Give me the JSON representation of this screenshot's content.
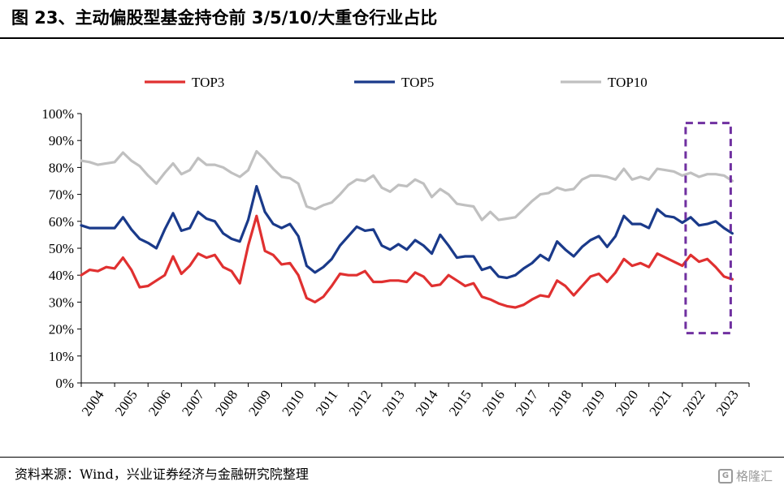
{
  "title": "图 23、主动偏股型基金持仓前 3/5/10/大重仓行业占比",
  "source": "资料来源：Wind，兴业证券经济与金融研究院整理",
  "watermark": "格隆汇",
  "chart_data": {
    "type": "line",
    "ylim": [
      0,
      100
    ],
    "y_ticks": [
      "0%",
      "10%",
      "20%",
      "30%",
      "40%",
      "50%",
      "60%",
      "70%",
      "80%",
      "90%",
      "100%"
    ],
    "x_ticks": [
      "2004",
      "2005",
      "2006",
      "2007",
      "2008",
      "2009",
      "2010",
      "2011",
      "2012",
      "2013",
      "2014",
      "2015",
      "2016",
      "2017",
      "2018",
      "2019",
      "2020",
      "2021",
      "2022",
      "2023"
    ],
    "x_range": [
      2004.0,
      2024.0
    ],
    "legend_position": "top",
    "highlight": {
      "x_range": [
        2022.1,
        2023.45
      ],
      "y_range": [
        18.5,
        96.5
      ],
      "color": "#7030a0"
    },
    "series": [
      {
        "name": "TOP3",
        "color": "#e03030",
        "values": [
          [
            2004.0,
            40
          ],
          [
            2004.25,
            42
          ],
          [
            2004.5,
            41.5
          ],
          [
            2004.75,
            43
          ],
          [
            2005.0,
            42.5
          ],
          [
            2005.25,
            46.5
          ],
          [
            2005.5,
            42
          ],
          [
            2005.75,
            35.5
          ],
          [
            2006.0,
            36
          ],
          [
            2006.25,
            38
          ],
          [
            2006.5,
            40
          ],
          [
            2006.75,
            47
          ],
          [
            2007.0,
            40.5
          ],
          [
            2007.25,
            43.5
          ],
          [
            2007.5,
            48
          ],
          [
            2007.75,
            46.5
          ],
          [
            2008.0,
            47.5
          ],
          [
            2008.25,
            43
          ],
          [
            2008.5,
            41.5
          ],
          [
            2008.75,
            37
          ],
          [
            2009.0,
            51
          ],
          [
            2009.25,
            62
          ],
          [
            2009.5,
            49
          ],
          [
            2009.75,
            47.5
          ],
          [
            2010.0,
            44
          ],
          [
            2010.25,
            44.5
          ],
          [
            2010.5,
            40
          ],
          [
            2010.75,
            31.5
          ],
          [
            2011.0,
            30
          ],
          [
            2011.25,
            32
          ],
          [
            2011.5,
            36
          ],
          [
            2011.75,
            40.5
          ],
          [
            2012.0,
            40
          ],
          [
            2012.25,
            40
          ],
          [
            2012.5,
            41.5
          ],
          [
            2012.75,
            37.5
          ],
          [
            2013.0,
            37.5
          ],
          [
            2013.25,
            38
          ],
          [
            2013.5,
            38
          ],
          [
            2013.75,
            37.5
          ],
          [
            2014.0,
            41
          ],
          [
            2014.25,
            39.5
          ],
          [
            2014.5,
            36
          ],
          [
            2014.75,
            36.5
          ],
          [
            2015.0,
            40
          ],
          [
            2015.25,
            38
          ],
          [
            2015.5,
            36
          ],
          [
            2015.75,
            37
          ],
          [
            2016.0,
            32
          ],
          [
            2016.25,
            31
          ],
          [
            2016.5,
            29.5
          ],
          [
            2016.75,
            28.5
          ],
          [
            2017.0,
            28
          ],
          [
            2017.25,
            29
          ],
          [
            2017.5,
            31
          ],
          [
            2017.75,
            32.5
          ],
          [
            2018.0,
            32
          ],
          [
            2018.25,
            38
          ],
          [
            2018.5,
            36
          ],
          [
            2018.75,
            32.5
          ],
          [
            2019.0,
            36
          ],
          [
            2019.25,
            39.5
          ],
          [
            2019.5,
            40.5
          ],
          [
            2019.75,
            37.5
          ],
          [
            2020.0,
            41
          ],
          [
            2020.25,
            46
          ],
          [
            2020.5,
            43.5
          ],
          [
            2020.75,
            44.5
          ],
          [
            2021.0,
            43
          ],
          [
            2021.25,
            48
          ],
          [
            2021.5,
            46.5
          ],
          [
            2021.75,
            45
          ],
          [
            2022.0,
            43.5
          ],
          [
            2022.25,
            47.5
          ],
          [
            2022.5,
            45
          ],
          [
            2022.75,
            46
          ],
          [
            2023.0,
            43
          ],
          [
            2023.25,
            39.5
          ],
          [
            2023.5,
            38.5
          ]
        ]
      },
      {
        "name": "TOP5",
        "color": "#1a3a8a",
        "values": [
          [
            2004.0,
            58.5
          ],
          [
            2004.25,
            57.5
          ],
          [
            2004.5,
            57.5
          ],
          [
            2004.75,
            57.5
          ],
          [
            2005.0,
            57.5
          ],
          [
            2005.25,
            61.5
          ],
          [
            2005.5,
            57
          ],
          [
            2005.75,
            53.5
          ],
          [
            2006.0,
            52
          ],
          [
            2006.25,
            50
          ],
          [
            2006.5,
            57
          ],
          [
            2006.75,
            63
          ],
          [
            2007.0,
            56.5
          ],
          [
            2007.25,
            57.5
          ],
          [
            2007.5,
            63.5
          ],
          [
            2007.75,
            61
          ],
          [
            2008.0,
            60
          ],
          [
            2008.25,
            55.5
          ],
          [
            2008.5,
            53.5
          ],
          [
            2008.75,
            52.5
          ],
          [
            2009.0,
            60.5
          ],
          [
            2009.25,
            73
          ],
          [
            2009.5,
            63.5
          ],
          [
            2009.75,
            59
          ],
          [
            2010.0,
            57.5
          ],
          [
            2010.25,
            59
          ],
          [
            2010.5,
            54.5
          ],
          [
            2010.75,
            43.5
          ],
          [
            2011.0,
            41
          ],
          [
            2011.25,
            43
          ],
          [
            2011.5,
            46
          ],
          [
            2011.75,
            51
          ],
          [
            2012.0,
            54.5
          ],
          [
            2012.25,
            58
          ],
          [
            2012.5,
            56.5
          ],
          [
            2012.75,
            57
          ],
          [
            2013.0,
            51
          ],
          [
            2013.25,
            49.5
          ],
          [
            2013.5,
            51.5
          ],
          [
            2013.75,
            49.5
          ],
          [
            2014.0,
            53
          ],
          [
            2014.25,
            51
          ],
          [
            2014.5,
            48
          ],
          [
            2014.75,
            55
          ],
          [
            2015.0,
            51
          ],
          [
            2015.25,
            46.5
          ],
          [
            2015.5,
            47
          ],
          [
            2015.75,
            47
          ],
          [
            2016.0,
            42
          ],
          [
            2016.25,
            43
          ],
          [
            2016.5,
            39.5
          ],
          [
            2016.75,
            39
          ],
          [
            2017.0,
            40
          ],
          [
            2017.25,
            42.5
          ],
          [
            2017.5,
            44.5
          ],
          [
            2017.75,
            47.5
          ],
          [
            2018.0,
            45.5
          ],
          [
            2018.25,
            52.5
          ],
          [
            2018.5,
            49.5
          ],
          [
            2018.75,
            47
          ],
          [
            2019.0,
            50.5
          ],
          [
            2019.25,
            53
          ],
          [
            2019.5,
            54.5
          ],
          [
            2019.75,
            50.5
          ],
          [
            2020.0,
            54.5
          ],
          [
            2020.25,
            62
          ],
          [
            2020.5,
            59
          ],
          [
            2020.75,
            59
          ],
          [
            2021.0,
            57.5
          ],
          [
            2021.25,
            64.5
          ],
          [
            2021.5,
            62
          ],
          [
            2021.75,
            61.5
          ],
          [
            2022.0,
            59.5
          ],
          [
            2022.25,
            61.5
          ],
          [
            2022.5,
            58.5
          ],
          [
            2022.75,
            59
          ],
          [
            2023.0,
            60
          ],
          [
            2023.25,
            57.5
          ],
          [
            2023.5,
            55.5
          ]
        ]
      },
      {
        "name": "TOP10",
        "color": "#c0c0c0",
        "values": [
          [
            2004.0,
            82.5
          ],
          [
            2004.25,
            82
          ],
          [
            2004.5,
            81
          ],
          [
            2004.75,
            81.5
          ],
          [
            2005.0,
            82
          ],
          [
            2005.25,
            85.5
          ],
          [
            2005.5,
            82.5
          ],
          [
            2005.75,
            80.5
          ],
          [
            2006.0,
            77
          ],
          [
            2006.25,
            74
          ],
          [
            2006.5,
            78
          ],
          [
            2006.75,
            81.5
          ],
          [
            2007.0,
            77.5
          ],
          [
            2007.25,
            79
          ],
          [
            2007.5,
            83.5
          ],
          [
            2007.75,
            81
          ],
          [
            2008.0,
            81
          ],
          [
            2008.25,
            80
          ],
          [
            2008.5,
            78
          ],
          [
            2008.75,
            76.5
          ],
          [
            2009.0,
            79
          ],
          [
            2009.25,
            86
          ],
          [
            2009.5,
            83
          ],
          [
            2009.75,
            79.5
          ],
          [
            2010.0,
            76.5
          ],
          [
            2010.25,
            76
          ],
          [
            2010.5,
            74
          ],
          [
            2010.75,
            65.5
          ],
          [
            2011.0,
            64.5
          ],
          [
            2011.25,
            66
          ],
          [
            2011.5,
            67
          ],
          [
            2011.75,
            70
          ],
          [
            2012.0,
            73.5
          ],
          [
            2012.25,
            75.5
          ],
          [
            2012.5,
            75
          ],
          [
            2012.75,
            77
          ],
          [
            2013.0,
            72.5
          ],
          [
            2013.25,
            71
          ],
          [
            2013.5,
            73.5
          ],
          [
            2013.75,
            73
          ],
          [
            2014.0,
            75.5
          ],
          [
            2014.25,
            74
          ],
          [
            2014.5,
            69
          ],
          [
            2014.75,
            72
          ],
          [
            2015.0,
            70
          ],
          [
            2015.25,
            66.5
          ],
          [
            2015.5,
            66
          ],
          [
            2015.75,
            65.5
          ],
          [
            2016.0,
            60.5
          ],
          [
            2016.25,
            63.5
          ],
          [
            2016.5,
            60.5
          ],
          [
            2016.75,
            61
          ],
          [
            2017.0,
            61.5
          ],
          [
            2017.25,
            64.5
          ],
          [
            2017.5,
            67.5
          ],
          [
            2017.75,
            70
          ],
          [
            2018.0,
            70.5
          ],
          [
            2018.25,
            72.5
          ],
          [
            2018.5,
            71.5
          ],
          [
            2018.75,
            72
          ],
          [
            2019.0,
            75.5
          ],
          [
            2019.25,
            77
          ],
          [
            2019.5,
            77
          ],
          [
            2019.75,
            76.5
          ],
          [
            2020.0,
            75.5
          ],
          [
            2020.25,
            79.5
          ],
          [
            2020.5,
            75.5
          ],
          [
            2020.75,
            76.5
          ],
          [
            2021.0,
            75.5
          ],
          [
            2021.25,
            79.5
          ],
          [
            2021.5,
            79
          ],
          [
            2021.75,
            78.5
          ],
          [
            2022.0,
            77
          ],
          [
            2022.25,
            78
          ],
          [
            2022.5,
            76.5
          ],
          [
            2022.75,
            77.5
          ],
          [
            2023.0,
            77.5
          ],
          [
            2023.25,
            77
          ],
          [
            2023.5,
            75
          ]
        ]
      }
    ]
  }
}
